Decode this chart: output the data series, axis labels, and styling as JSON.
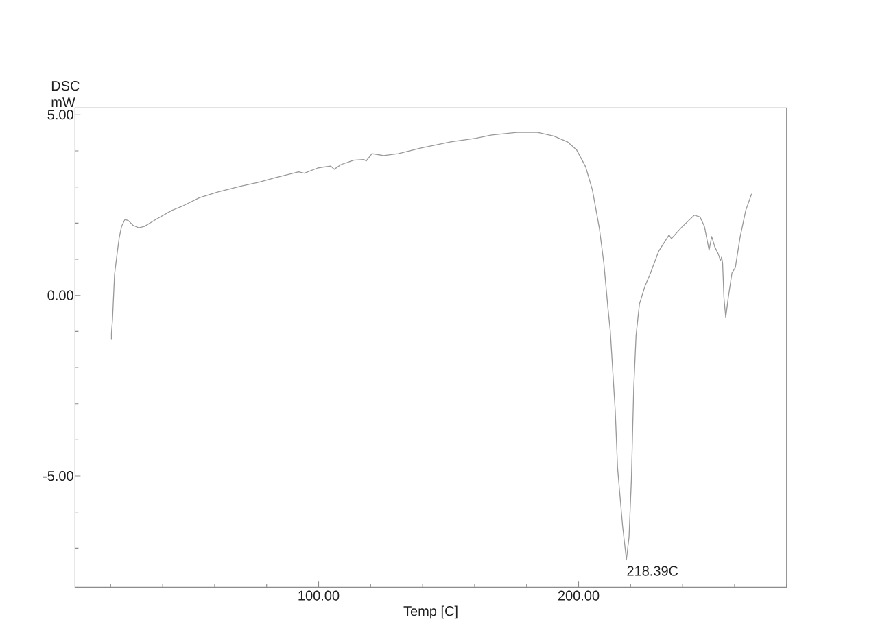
{
  "chart_data": {
    "type": "line",
    "xlabel": "Temp [C]",
    "ylabel": "DSC mW",
    "annotations": [
      {
        "text": "218.39C",
        "x": 218.39,
        "y": -7.32
      }
    ],
    "x": [
      20.3,
      20.3,
      20.7,
      21.5,
      22.6,
      23.3,
      24.2,
      25.5,
      26.8,
      28.6,
      30.8,
      33.0,
      37.4,
      43.5,
      47.9,
      54.1,
      61.1,
      69.9,
      76.9,
      83.1,
      92.3,
      94.5,
      99.8,
      104.6,
      106.0,
      108.6,
      113.5,
      117.4,
      118.3,
      120.5,
      122.5,
      125.0,
      130.6,
      139.4,
      150.8,
      160.5,
      166.6,
      176.3,
      184.2,
      190.4,
      195.7,
      199.2,
      202.7,
      205.3,
      208.0,
      209.7,
      211.3,
      212.2,
      214.1,
      215.0,
      216.9,
      218.39,
      219.4,
      220.3,
      221.2,
      222.1,
      223.4,
      225.6,
      227.3,
      230.8,
      234.8,
      235.7,
      239.6,
      244.5,
      246.7,
      248.4,
      250.2,
      251.2,
      252.4,
      253.7,
      254.6,
      255.0,
      255.4,
      255.9,
      256.6,
      257.6,
      259.0,
      260.3,
      262.1,
      264.3,
      266.5
    ],
    "values": [
      -1.22,
      -1.05,
      -0.68,
      0.58,
      1.22,
      1.6,
      1.91,
      2.1,
      2.07,
      1.94,
      1.87,
      1.91,
      2.1,
      2.35,
      2.48,
      2.7,
      2.86,
      3.02,
      3.13,
      3.25,
      3.42,
      3.38,
      3.53,
      3.58,
      3.49,
      3.62,
      3.74,
      3.76,
      3.72,
      3.92,
      3.9,
      3.87,
      3.92,
      4.08,
      4.25,
      4.35,
      4.44,
      4.51,
      4.51,
      4.41,
      4.25,
      4.03,
      3.56,
      2.92,
      1.85,
      0.9,
      -0.36,
      -1.0,
      -3.21,
      -4.79,
      -6.37,
      -7.32,
      -6.69,
      -5.11,
      -2.58,
      -1.12,
      -0.24,
      0.27,
      0.55,
      1.22,
      1.67,
      1.57,
      1.88,
      2.22,
      2.17,
      1.91,
      1.25,
      1.63,
      1.34,
      1.15,
      0.96,
      1.06,
      0.9,
      -0.05,
      -0.62,
      -0.05,
      0.62,
      0.77,
      1.6,
      2.35,
      2.8
    ],
    "color": "#999999",
    "marker": "none",
    "line_style": "solid",
    "xlim": [
      6.3,
      280
    ],
    "ylim": [
      -8.08,
      5.19
    ],
    "xticks": [
      {
        "value": 20,
        "label": null
      },
      {
        "value": 40,
        "label": null
      },
      {
        "value": 60,
        "label": null
      },
      {
        "value": 80,
        "label": null
      },
      {
        "value": 100,
        "label": "100.00"
      },
      {
        "value": 120,
        "label": null
      },
      {
        "value": 140,
        "label": null
      },
      {
        "value": 160,
        "label": null
      },
      {
        "value": 180,
        "label": null
      },
      {
        "value": 200,
        "label": "200.00"
      },
      {
        "value": 220,
        "label": null
      },
      {
        "value": 240,
        "label": null
      },
      {
        "value": 260,
        "label": null
      },
      {
        "value": 280,
        "label": null
      }
    ],
    "yticks": [
      {
        "value": -7,
        "label": null
      },
      {
        "value": -6,
        "label": null
      },
      {
        "value": -5,
        "label": "-5.00"
      },
      {
        "value": -4,
        "label": null
      },
      {
        "value": -3,
        "label": null
      },
      {
        "value": -2,
        "label": null
      },
      {
        "value": -1,
        "label": null
      },
      {
        "value": 0,
        "label": "0.00"
      },
      {
        "value": 1,
        "label": null
      },
      {
        "value": 2,
        "label": null
      },
      {
        "value": 3,
        "label": null
      },
      {
        "value": 4,
        "label": null
      },
      {
        "value": 5,
        "label": "5.00"
      }
    ]
  }
}
